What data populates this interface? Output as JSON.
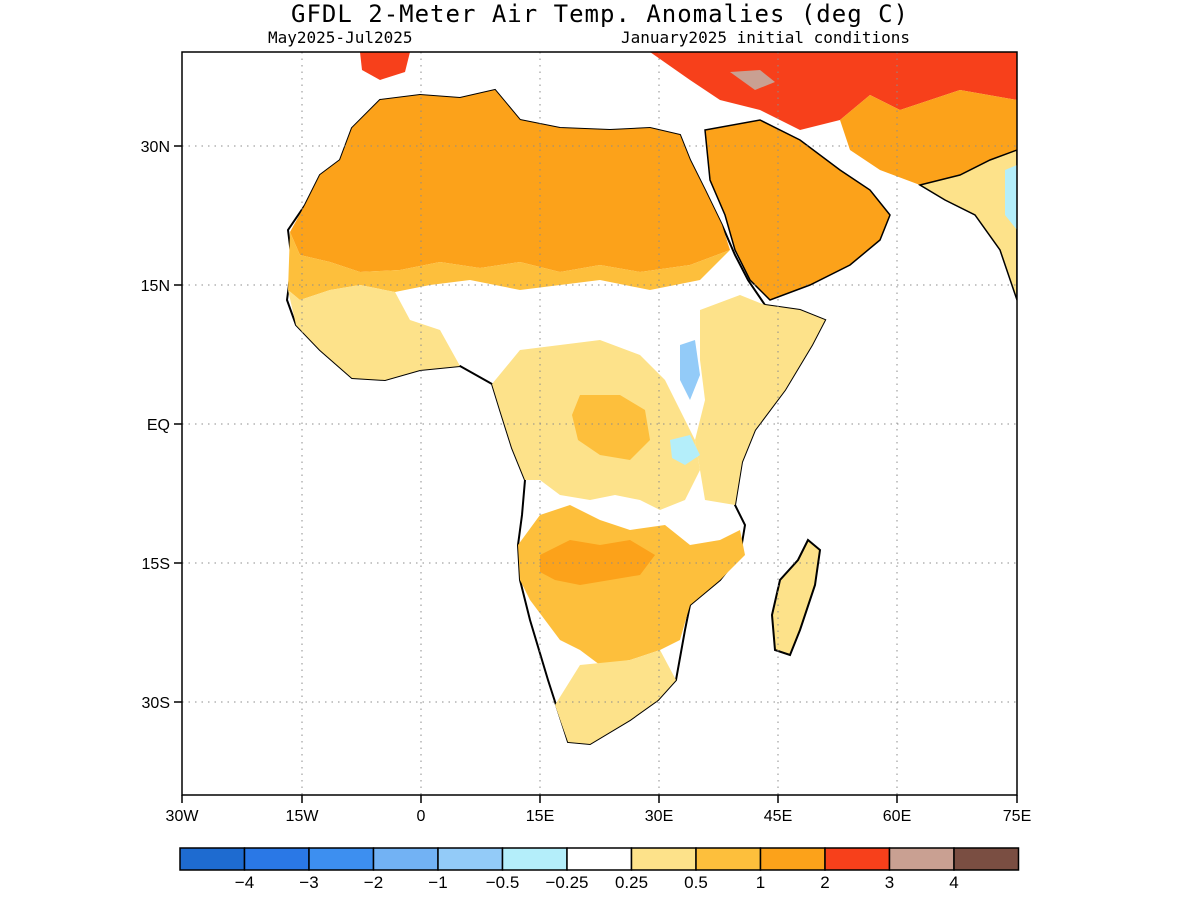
{
  "title": "GFDL 2-Meter Air Temp. Anomalies (deg C)",
  "subtitle_left": "May2025-Jul2025",
  "subtitle_right": "January2025 initial conditions",
  "map": {
    "region": "Africa",
    "lon_range": [
      -30,
      75
    ],
    "lat_range": [
      -40,
      40
    ],
    "x_ticks": [
      "30W",
      "15W",
      "0",
      "15E",
      "30E",
      "45E",
      "60E",
      "75E"
    ],
    "y_ticks": [
      "30N",
      "15N",
      "EQ",
      "15S",
      "30S"
    ],
    "grid": "dotted"
  },
  "colorbar": {
    "colors": [
      "#1e6bd0",
      "#2a78e6",
      "#3d8ff0",
      "#72b2f4",
      "#93cbf8",
      "#b4eefa",
      "#ffffff",
      "#fde28a",
      "#fdbf3c",
      "#fca21a",
      "#f7401b",
      "#c9a092",
      "#7a4e42"
    ],
    "labels": [
      "-4",
      "-3",
      "-2",
      "-1",
      "-0.5",
      "-0.25",
      "0.25",
      "0.5",
      "1",
      "2",
      "3",
      "4"
    ]
  }
}
